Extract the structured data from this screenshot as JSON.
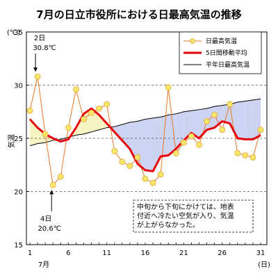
{
  "chart_data": {
    "type": "line",
    "title": "7月の日立市役所における日最高気温の推移",
    "ylabel": "気温",
    "yunit": "(℃)",
    "xunit": "(日)",
    "month_label": "7月",
    "ylim": [
      15,
      35
    ],
    "xlim": [
      1,
      31
    ],
    "y_ticks": [
      "15",
      "20",
      "25",
      "30",
      "35"
    ],
    "x_ticks": [
      "1",
      "6",
      "11",
      "16",
      "21",
      "26",
      "31"
    ],
    "grid": "dashed horizontal at 20, 25, 30",
    "legend_position": "top-right",
    "x": [
      1,
      2,
      3,
      4,
      5,
      6,
      7,
      8,
      9,
      10,
      11,
      12,
      13,
      14,
      15,
      16,
      17,
      18,
      19,
      20,
      21,
      22,
      23,
      24,
      25,
      26,
      27,
      28,
      29,
      30,
      31
    ],
    "series": [
      {
        "name": "日最高気温",
        "color": "#e87722",
        "marker": "#f5e76c",
        "values": [
          27.6,
          30.8,
          25.4,
          20.6,
          21.4,
          26.0,
          29.6,
          26.8,
          27.4,
          27.8,
          28.2,
          23.8,
          22.8,
          22.4,
          23.2,
          21.2,
          20.8,
          21.6,
          29.8,
          23.6,
          24.6,
          25.2,
          24.4,
          26.6,
          27.2,
          25.8,
          28.2,
          23.6,
          23.4,
          23.2,
          25.8
        ]
      },
      {
        "name": "5日間移動平均",
        "color": "#e8000b",
        "values": [
          26.8,
          26.0,
          25.4,
          25.0,
          24.7,
          24.9,
          26.0,
          27.3,
          27.8,
          27.2,
          26.4,
          25.6,
          24.8,
          24.0,
          22.6,
          22.0,
          21.9,
          23.3,
          23.4,
          24.0,
          24.8,
          25.5,
          25.0,
          25.8,
          26.0,
          26.6,
          26.4,
          25.0,
          24.9,
          24.9,
          25.3
        ]
      },
      {
        "name": "平年日最高気温",
        "color": "#000000",
        "values": [
          24.3,
          24.5,
          24.6,
          24.8,
          24.9,
          25.1,
          25.3,
          25.4,
          25.6,
          25.8,
          26.0,
          26.1,
          26.3,
          26.5,
          26.6,
          26.8,
          26.9,
          27.0,
          27.2,
          27.3,
          27.5,
          27.6,
          27.7,
          27.8,
          28.0,
          28.1,
          28.2,
          28.4,
          28.5,
          28.6,
          28.7
        ]
      }
    ],
    "fill_above_normal": "#f6f4c2",
    "fill_below_normal": "#cdd3f2",
    "annotations": [
      {
        "text_day": "2日",
        "text_value": "30.8℃",
        "day": 2,
        "value": 30.8
      },
      {
        "text_day": "4日",
        "text_value": "20.6℃",
        "day": 4,
        "value": 20.6
      }
    ],
    "note": "中旬から下旬にかけては、地表付近へ冷たい空気が入り、気温が上がらなかった。",
    "note_lines": [
      "中旬から下旬にかけては、地表",
      "付近へ冷たい空気が入り、気温",
      "が上がらなかった。"
    ]
  }
}
